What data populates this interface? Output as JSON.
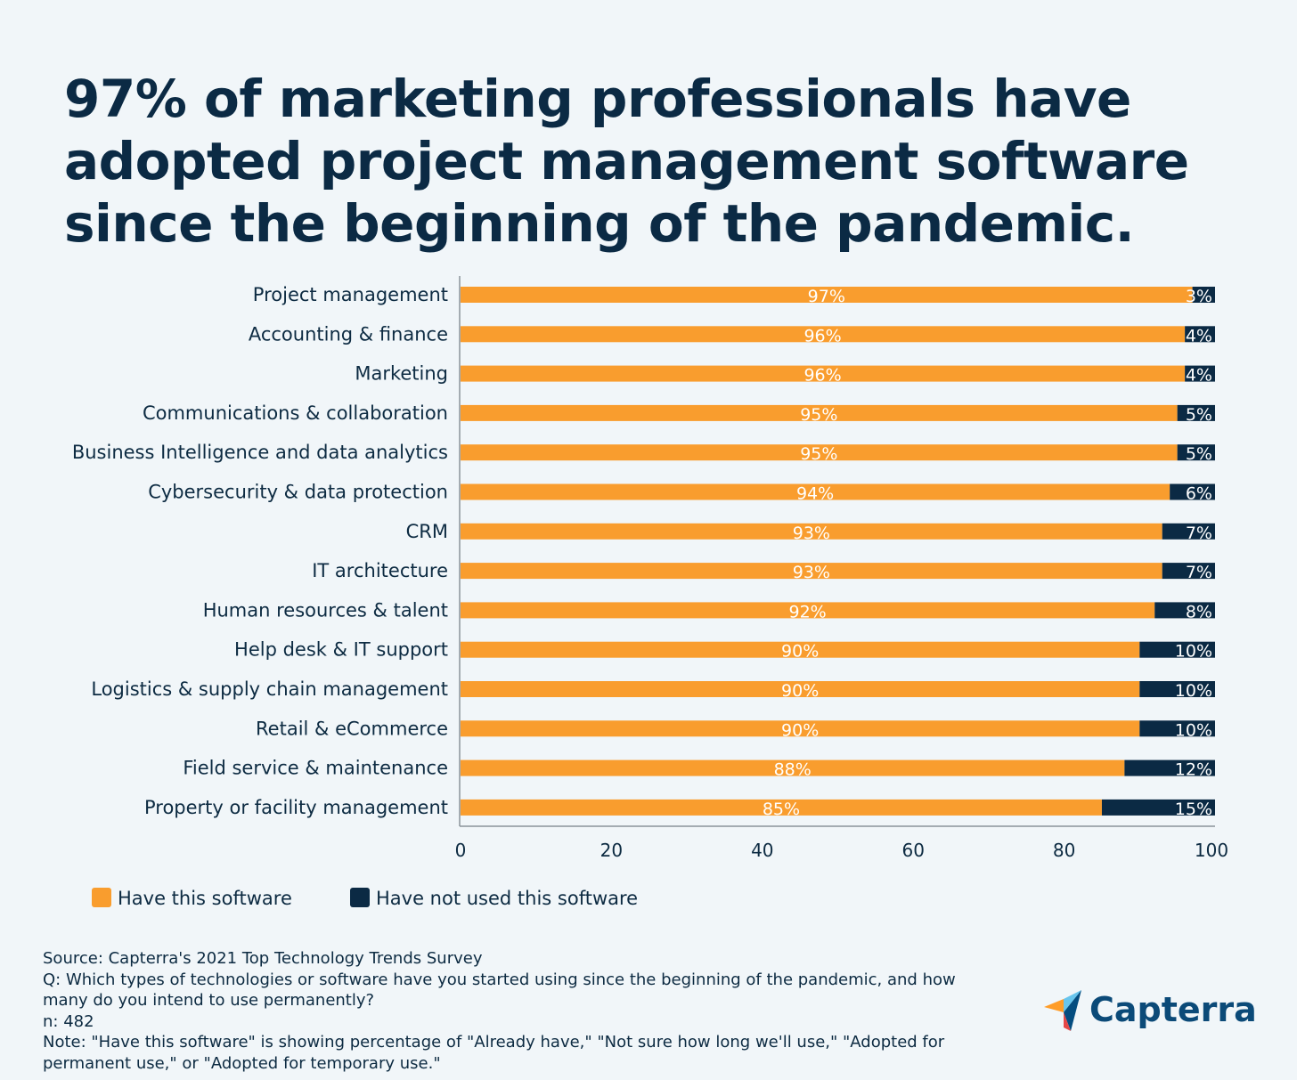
{
  "title": "97% of marketing professionals have adopted project management software since the beginning of the pandemic.",
  "chart_data": {
    "type": "bar",
    "orientation": "horizontal",
    "stacked": true,
    "categories": [
      "Project management",
      "Accounting & finance",
      "Marketing",
      "Communications & collaboration",
      "Business Intelligence and data analytics",
      "Cybersecurity & data protection",
      "CRM",
      "IT architecture",
      "Human resources & talent",
      "Help desk & IT support",
      "Logistics & supply chain management",
      "Retail & eCommerce",
      "Field service & maintenance",
      "Property or facility management"
    ],
    "series": [
      {
        "name": "Have this software",
        "color": "#f99d2e",
        "values": [
          97,
          96,
          96,
          95,
          95,
          94,
          93,
          93,
          92,
          90,
          90,
          90,
          88,
          85
        ]
      },
      {
        "name": "Have not used this software",
        "color": "#0b2a44",
        "values": [
          3,
          4,
          4,
          5,
          5,
          6,
          7,
          7,
          8,
          10,
          10,
          10,
          12,
          15
        ]
      }
    ],
    "xlim": [
      0,
      100
    ],
    "xticks": [
      0,
      20,
      40,
      60,
      80,
      100
    ],
    "value_suffix": "%",
    "grid": false,
    "legend_position": "bottom-left"
  },
  "footer": {
    "source": "Source: Capterra's 2021 Top Technology Trends Survey",
    "question": "Q: Which types of technologies or software have you started using since the beginning of the pandemic, and how many do you intend to use permanently?",
    "n": "n: 482",
    "note": "Note: \"Have this software\" is showing percentage of \"Already have,\" \"Not sure how long we'll use,\" \"Adopted for permanent use,\" or \"Adopted for temporary use.\""
  },
  "logo": {
    "text": "Capterra",
    "icon": "capterra-arrow-icon"
  }
}
